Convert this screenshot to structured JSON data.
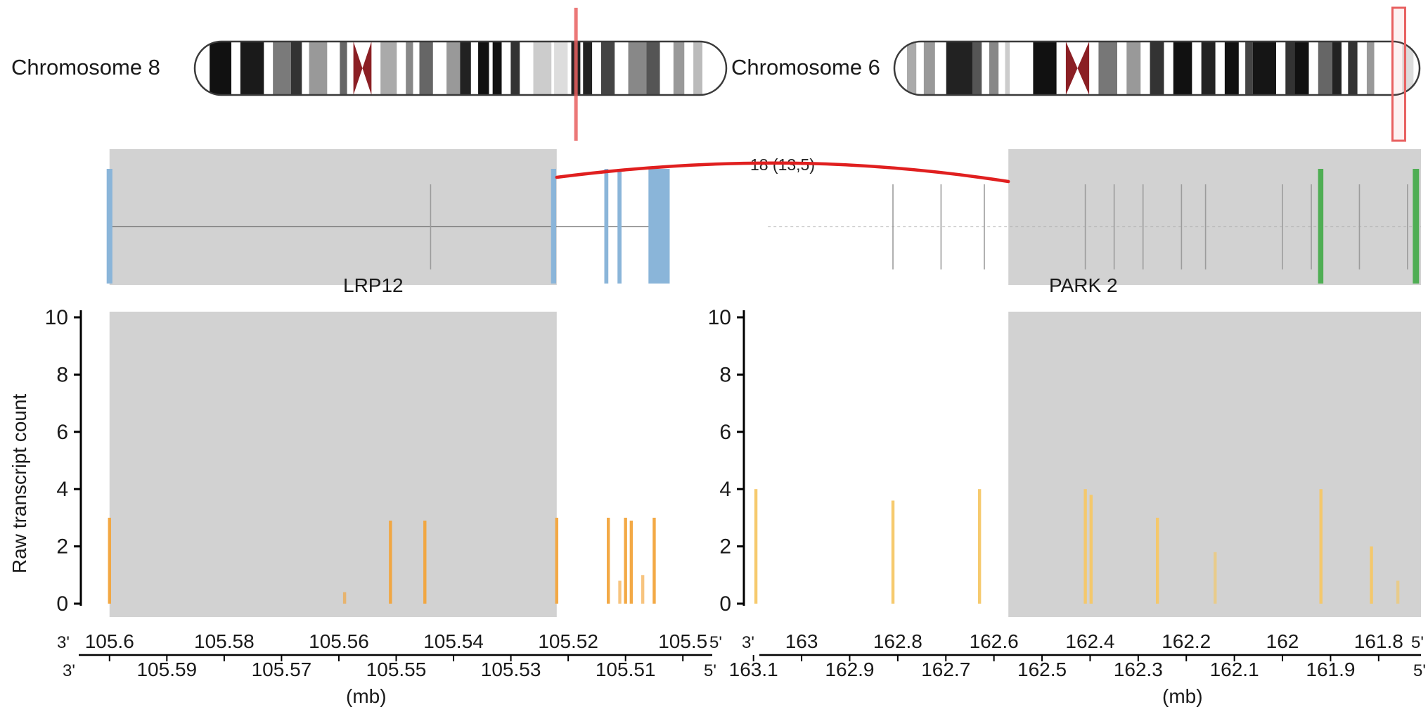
{
  "colors": {
    "background": "#ffffff",
    "text": "#1a1a1a",
    "gene_region": "#d2d2d2",
    "fusion_arc": "#e01f1f",
    "chr_marker": "#e86060",
    "centromere": "#8b1f24",
    "exon_blue": "#8ab5d9",
    "exon_green": "#4fae54",
    "bar_orange": "#f2a43b",
    "bar_yellow": "#f5c766",
    "axis": "#000000"
  },
  "ideograms": [
    {
      "label": "Chromosome 8",
      "marker_type": "line",
      "marker_pos": 0.716,
      "bands": [
        [
          18,
          "#fff"
        ],
        [
          24,
          "#111"
        ],
        [
          10,
          "#fff"
        ],
        [
          26,
          "#1a1a1a"
        ],
        [
          10,
          "#fff"
        ],
        [
          20,
          "#7a7a7a"
        ],
        [
          12,
          "#333"
        ],
        [
          8,
          "#fff"
        ],
        [
          20,
          "#999"
        ],
        [
          14,
          "#fff"
        ],
        [
          8,
          "#666"
        ],
        [
          7,
          "#fff"
        ],
        [
          20,
          "cen"
        ],
        [
          10,
          "#fff"
        ],
        [
          18,
          "#aaa"
        ],
        [
          10,
          "#fff"
        ],
        [
          8,
          "#888"
        ],
        [
          7,
          "#fff"
        ],
        [
          15,
          "#666"
        ],
        [
          15,
          "#fff"
        ],
        [
          15,
          "#999"
        ],
        [
          12,
          "#222"
        ],
        [
          8,
          "#fff"
        ],
        [
          12,
          "#111"
        ],
        [
          4,
          "#fff"
        ],
        [
          10,
          "#111"
        ],
        [
          10,
          "#fff"
        ],
        [
          10,
          "#333"
        ],
        [
          15,
          "#fff"
        ],
        [
          20,
          "#ccc"
        ],
        [
          3,
          "#fff"
        ],
        [
          15,
          "#ddd"
        ],
        [
          4,
          "#fff"
        ],
        [
          10,
          "#222"
        ],
        [
          3,
          "#fff"
        ],
        [
          10,
          "#222"
        ],
        [
          10,
          "#fff"
        ],
        [
          15,
          "#444"
        ],
        [
          15,
          "#fff"
        ],
        [
          20,
          "#888"
        ],
        [
          15,
          "#555"
        ],
        [
          15,
          "#fff"
        ],
        [
          12,
          "#999"
        ],
        [
          10,
          "#fff"
        ],
        [
          10,
          "#bbb"
        ],
        [
          28,
          "#fff"
        ]
      ]
    },
    {
      "label": "Chromosome 6",
      "marker_type": "rect",
      "marker_pos": 0.958,
      "bands": [
        [
          15,
          "#fff"
        ],
        [
          10,
          "#aaa"
        ],
        [
          8,
          "#fff"
        ],
        [
          12,
          "#999"
        ],
        [
          12,
          "#fff"
        ],
        [
          28,
          "#222"
        ],
        [
          10,
          "#555"
        ],
        [
          8,
          "#fff"
        ],
        [
          10,
          "#888"
        ],
        [
          7,
          "#fff"
        ],
        [
          5,
          "#ccc"
        ],
        [
          25,
          "#fff"
        ],
        [
          25,
          "#111"
        ],
        [
          10,
          "#fff"
        ],
        [
          25,
          "cen"
        ],
        [
          10,
          "#fff"
        ],
        [
          20,
          "#777"
        ],
        [
          10,
          "#fff"
        ],
        [
          15,
          "#999"
        ],
        [
          10,
          "#fff"
        ],
        [
          15,
          "#333"
        ],
        [
          10,
          "#fff"
        ],
        [
          20,
          "#111"
        ],
        [
          10,
          "#fff"
        ],
        [
          15,
          "#222"
        ],
        [
          10,
          "#fff"
        ],
        [
          15,
          "#111"
        ],
        [
          7,
          "#fff"
        ],
        [
          8,
          "#444"
        ],
        [
          25,
          "#151515"
        ],
        [
          10,
          "#fff"
        ],
        [
          10,
          "#333"
        ],
        [
          15,
          "#111"
        ],
        [
          10,
          "#fff"
        ],
        [
          15,
          "#666"
        ],
        [
          10,
          "#222"
        ],
        [
          7,
          "#fff"
        ],
        [
          10,
          "#333"
        ],
        [
          10,
          "#fff"
        ],
        [
          8,
          "#999"
        ],
        [
          30,
          "#fff"
        ],
        [
          12,
          "#ddd"
        ],
        [
          8,
          "#fff"
        ]
      ]
    }
  ],
  "fusion": {
    "label": "18 (13,5)",
    "chr8_breakpoint_mb": 105.522,
    "chr6_breakpoint_mb": 162.57
  },
  "genes": [
    {
      "name": "LRP12",
      "chromosome": "Chromosome 8",
      "region_mb": [
        105.6,
        105.522
      ],
      "exon_color_key": "exon_blue",
      "transcript_line_mb": [
        105.6,
        105.504
      ],
      "exons_mb": [
        [
          105.6005,
          105.5995
        ],
        [
          105.523,
          105.5221
        ],
        [
          105.5137,
          105.513
        ],
        [
          105.5114,
          105.5107
        ],
        [
          105.506,
          105.5023
        ]
      ],
      "transcript_ticks_mb": [
        105.544
      ]
    },
    {
      "name": "PARK 2",
      "chromosome": "Chromosome 6",
      "region_mb": [
        162.57,
        161.712
      ],
      "exon_color_key": "exon_green",
      "transcript_line_mb": [
        163.07,
        161.712
      ],
      "exons_mb": [
        [
          161.926,
          161.915
        ],
        [
          161.729,
          161.716
        ]
      ],
      "transcript_ticks_mb": [
        162.81,
        162.71,
        162.62,
        162.41,
        162.35,
        162.29,
        162.21,
        162.16,
        162.0,
        161.94,
        161.84,
        161.74
      ]
    }
  ],
  "chart_data": [
    {
      "type": "bar",
      "panel": "chromosome-8-LRP12",
      "ylabel": "Raw transcript count",
      "xlabel": "(mb)",
      "ylim": [
        0,
        10
      ],
      "yticks": [
        0,
        2,
        4,
        6,
        8,
        10
      ],
      "x_axis": {
        "prime_left": "3'",
        "prime_right": "5'",
        "range_mb": [
          105.605,
          105.495
        ],
        "row1": [
          {
            "label": "105.6",
            "mb": 105.6
          },
          {
            "label": "105.58",
            "mb": 105.58
          },
          {
            "label": "105.56",
            "mb": 105.56
          },
          {
            "label": "105.54",
            "mb": 105.54
          },
          {
            "label": "105.52",
            "mb": 105.52
          },
          {
            "label": "105.5",
            "mb": 105.5
          }
        ],
        "row2": [
          {
            "label": "105.59",
            "mb": 105.59
          },
          {
            "label": "105.57",
            "mb": 105.57
          },
          {
            "label": "105.55",
            "mb": 105.55
          },
          {
            "label": "105.53",
            "mb": 105.53
          },
          {
            "label": "105.51",
            "mb": 105.51
          }
        ]
      },
      "bars": [
        {
          "mb": 105.6,
          "count": 3
        },
        {
          "mb": 105.559,
          "count": 0.4
        },
        {
          "mb": 105.551,
          "count": 2.9
        },
        {
          "mb": 105.545,
          "count": 2.9
        },
        {
          "mb": 105.522,
          "count": 3
        },
        {
          "mb": 105.513,
          "count": 3
        },
        {
          "mb": 105.511,
          "count": 0.8
        },
        {
          "mb": 105.51,
          "count": 3
        },
        {
          "mb": 105.509,
          "count": 2.9
        },
        {
          "mb": 105.507,
          "count": 1
        },
        {
          "mb": 105.505,
          "count": 3
        }
      ]
    },
    {
      "type": "bar",
      "panel": "chromosome-6-PARK2",
      "ylabel": "",
      "xlabel": "(mb)",
      "ylim": [
        0,
        10
      ],
      "yticks": [
        0,
        2,
        4,
        6,
        8,
        10
      ],
      "x_axis": {
        "prime_left": "3'",
        "prime_right": "5'",
        "range_mb": [
          163.12,
          161.712
        ],
        "row1": [
          {
            "label": "163",
            "mb": 163
          },
          {
            "label": "162.8",
            "mb": 162.8
          },
          {
            "label": "162.6",
            "mb": 162.6
          },
          {
            "label": "162.4",
            "mb": 162.4
          },
          {
            "label": "162.2",
            "mb": 162.2
          },
          {
            "label": "162",
            "mb": 162
          },
          {
            "label": "161.8",
            "mb": 161.8
          }
        ],
        "row2": [
          {
            "label": "163.1",
            "mb": 163.1
          },
          {
            "label": "162.9",
            "mb": 162.9
          },
          {
            "label": "162.7",
            "mb": 162.7
          },
          {
            "label": "162.5",
            "mb": 162.5
          },
          {
            "label": "162.3",
            "mb": 162.3
          },
          {
            "label": "162.1",
            "mb": 162.1
          },
          {
            "label": "161.9",
            "mb": 161.9
          }
        ]
      },
      "bars": [
        {
          "mb": 163.095,
          "count": 4
        },
        {
          "mb": 162.81,
          "count": 3.6
        },
        {
          "mb": 162.63,
          "count": 4
        },
        {
          "mb": 162.41,
          "count": 4
        },
        {
          "mb": 162.398,
          "count": 3.8
        },
        {
          "mb": 162.26,
          "count": 3
        },
        {
          "mb": 162.14,
          "count": 1.8
        },
        {
          "mb": 161.92,
          "count": 4
        },
        {
          "mb": 161.815,
          "count": 2
        },
        {
          "mb": 161.76,
          "count": 0.8
        }
      ]
    }
  ]
}
